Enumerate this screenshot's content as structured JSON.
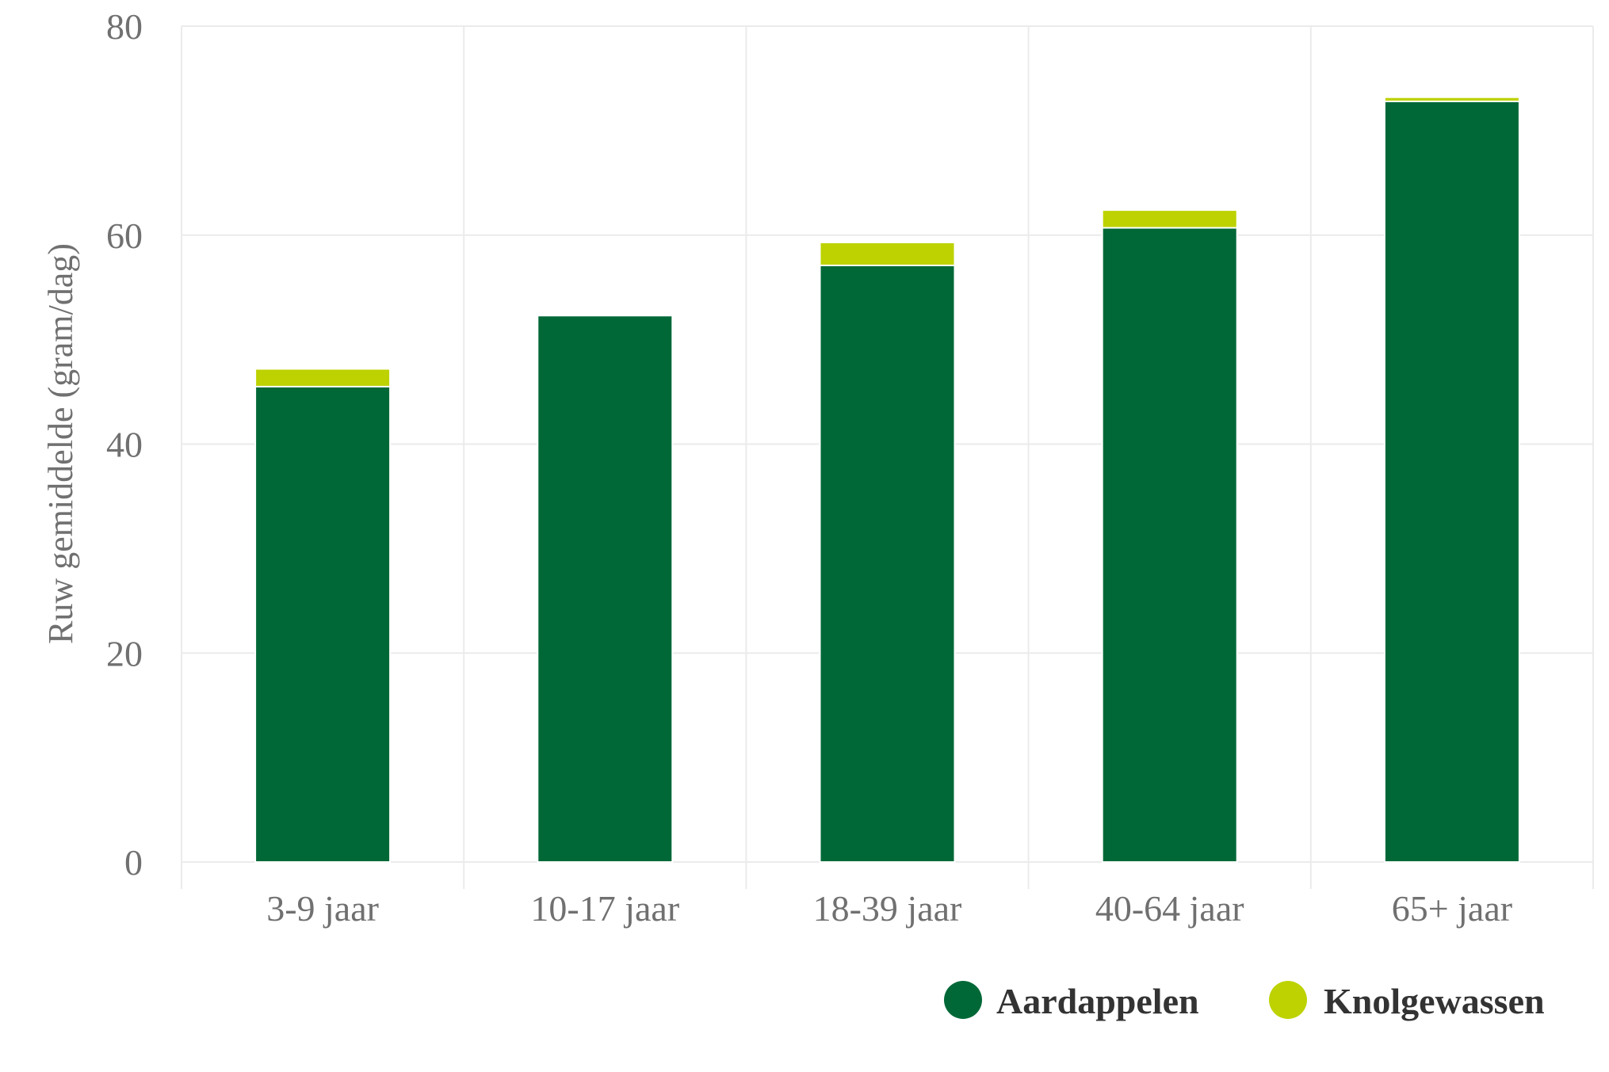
{
  "chart_data": {
    "type": "bar",
    "stacked": true,
    "title": "",
    "xlabel": "",
    "ylabel": "Ruw gemiddelde (gram/dag)",
    "categories": [
      "3-9 jaar",
      "10-17 jaar",
      "18-39 jaar",
      "40-64 jaar",
      "65+ jaar"
    ],
    "series": [
      {
        "name": "Aardappelen",
        "color": "#006837",
        "values": [
          45.5,
          52.3,
          57.1,
          60.7,
          72.8
        ]
      },
      {
        "name": "Knolgewassen",
        "color": "#bdd200",
        "values": [
          1.7,
          0.0,
          2.2,
          1.7,
          0.4
        ]
      }
    ],
    "ylim": [
      0,
      80
    ],
    "yticks": [
      0,
      20,
      40,
      60,
      80
    ],
    "grid": true,
    "legend_position": "bottom-right"
  }
}
